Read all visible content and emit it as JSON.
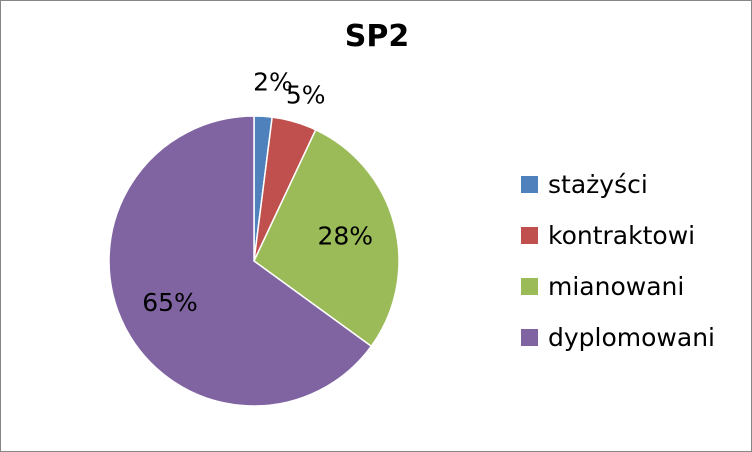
{
  "chart_data": {
    "type": "pie",
    "title": "SP2",
    "categories": [
      "stażyści",
      "kontraktowi",
      "mianowani",
      "dyplomowani"
    ],
    "values": [
      2,
      5,
      28,
      65
    ],
    "labels": [
      "2%",
      "5%",
      "28%",
      "65%"
    ],
    "colors": [
      "#4F81BD",
      "#C0504D",
      "#9BBB59",
      "#8064A2"
    ],
    "legend_position": "right"
  }
}
